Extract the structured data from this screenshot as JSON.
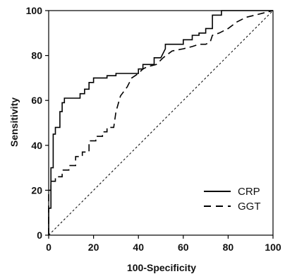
{
  "chart_data": {
    "type": "line",
    "title": "",
    "xlabel": "100-Specificity",
    "ylabel": "Sensitivity",
    "xlim": [
      0,
      100
    ],
    "ylim": [
      0,
      100
    ],
    "xticks": [
      0,
      20,
      40,
      60,
      80,
      100
    ],
    "yticks": [
      0,
      20,
      40,
      60,
      80,
      100
    ],
    "xtick_labels": [
      "0",
      "20",
      "40",
      "60",
      "80",
      "100"
    ],
    "ytick_labels": [
      "0",
      "20",
      "40",
      "60",
      "80",
      "100"
    ],
    "grid": false,
    "legend_position": "bottom-right",
    "reference_line": {
      "style": "dotted",
      "from": [
        0,
        0
      ],
      "to": [
        100,
        100
      ]
    },
    "series": [
      {
        "name": "CRP",
        "style": "solid",
        "color": "#000000",
        "points": [
          [
            0,
            0
          ],
          [
            0,
            12
          ],
          [
            1,
            12
          ],
          [
            1,
            30
          ],
          [
            2,
            30
          ],
          [
            2,
            45
          ],
          [
            3,
            45
          ],
          [
            3,
            48
          ],
          [
            5,
            48
          ],
          [
            5,
            55
          ],
          [
            6,
            55
          ],
          [
            6,
            59
          ],
          [
            7,
            59
          ],
          [
            7,
            61
          ],
          [
            14,
            61
          ],
          [
            14,
            63
          ],
          [
            16,
            63
          ],
          [
            16,
            65
          ],
          [
            18,
            65
          ],
          [
            18,
            68
          ],
          [
            20,
            68
          ],
          [
            20,
            70
          ],
          [
            26,
            70
          ],
          [
            26,
            71
          ],
          [
            30,
            71
          ],
          [
            30,
            72
          ],
          [
            40,
            72
          ],
          [
            40,
            74
          ],
          [
            42,
            74
          ],
          [
            42,
            76
          ],
          [
            47,
            76
          ],
          [
            47,
            79
          ],
          [
            50,
            79
          ],
          [
            52,
            83
          ],
          [
            52,
            85
          ],
          [
            60,
            85
          ],
          [
            60,
            87
          ],
          [
            64,
            87
          ],
          [
            64,
            89
          ],
          [
            67,
            89
          ],
          [
            67,
            90
          ],
          [
            70,
            90
          ],
          [
            70,
            92
          ],
          [
            73,
            92
          ],
          [
            73,
            98
          ],
          [
            77,
            98
          ],
          [
            77,
            100
          ],
          [
            100,
            100
          ]
        ]
      },
      {
        "name": "GGT",
        "style": "dashed",
        "color": "#000000",
        "points": [
          [
            0,
            0
          ],
          [
            0,
            20
          ],
          [
            1,
            20
          ],
          [
            1,
            24
          ],
          [
            3,
            24
          ],
          [
            3,
            26
          ],
          [
            6,
            26
          ],
          [
            6,
            29
          ],
          [
            9,
            29
          ],
          [
            9,
            31
          ],
          [
            12,
            31
          ],
          [
            12,
            35
          ],
          [
            15,
            35
          ],
          [
            15,
            37
          ],
          [
            18,
            37
          ],
          [
            18,
            42
          ],
          [
            21,
            42
          ],
          [
            21,
            44
          ],
          [
            24,
            44
          ],
          [
            24,
            46
          ],
          [
            26,
            46
          ],
          [
            26,
            48
          ],
          [
            29,
            48
          ],
          [
            30,
            55
          ],
          [
            32,
            62
          ],
          [
            35,
            66
          ],
          [
            37,
            70
          ],
          [
            40,
            72
          ],
          [
            42,
            74
          ],
          [
            44,
            75
          ],
          [
            48,
            76
          ],
          [
            51,
            79
          ],
          [
            55,
            82
          ],
          [
            60,
            83
          ],
          [
            64,
            84
          ],
          [
            67,
            85
          ],
          [
            70,
            85
          ],
          [
            72,
            86
          ],
          [
            73,
            89
          ],
          [
            76,
            90
          ],
          [
            80,
            92
          ],
          [
            84,
            95
          ],
          [
            88,
            97
          ],
          [
            92,
            98
          ],
          [
            96,
            99
          ],
          [
            100,
            100
          ]
        ]
      }
    ]
  }
}
